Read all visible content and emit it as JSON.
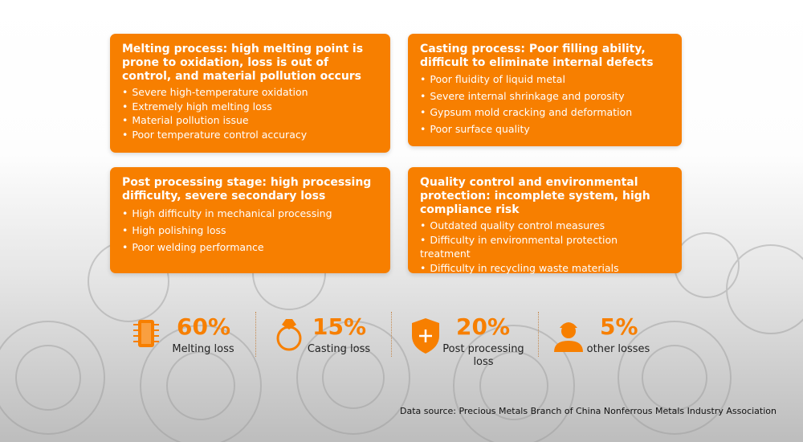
{
  "cards": [
    {
      "title": "Melting process: high melting point is prone to oxidation, loss is out of control, and material pollution occurs",
      "items": [
        "Severe high-temperature oxidation",
        "Extremely high melting loss",
        "Material pollution issue",
        "Poor temperature control accuracy"
      ]
    },
    {
      "title": "Casting process: Poor filling ability, difficult to eliminate internal defects",
      "items": [
        "Poor fluidity of liquid metal",
        "Severe internal shrinkage and porosity",
        "Gypsum mold cracking and deformation",
        "Poor surface quality"
      ]
    },
    {
      "title": "Post processing stage: high processing difficulty, severe secondary loss",
      "items": [
        "High difficulty in mechanical processing",
        "High polishing loss",
        "Poor welding performance"
      ]
    },
    {
      "title": "Quality control and environmental protection: incomplete system, high compliance risk",
      "items": [
        "Outdated quality control measures",
        "Difficulty in environmental protection treatment",
        "Difficulty in recycling waste materials"
      ]
    }
  ],
  "stats": [
    {
      "value": "60%",
      "label": "Melting loss"
    },
    {
      "value": "15%",
      "label": "Casting loss"
    },
    {
      "value": "20%",
      "label": "Post processing loss"
    },
    {
      "value": "5%",
      "label": "other losses"
    }
  ],
  "source": "Data source: Precious Metals Branch of China Nonferrous Metals Industry Association"
}
